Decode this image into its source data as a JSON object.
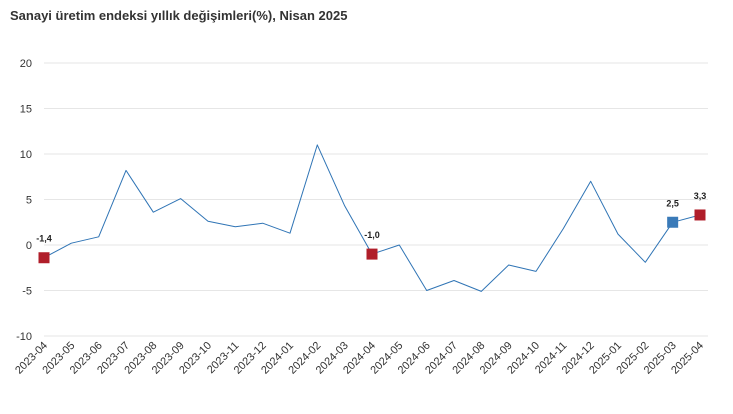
{
  "chart_data": {
    "type": "line",
    "title": "Sanayi üretim endeksi yıllık değişimleri(%), Nisan 2025",
    "xlabel": "",
    "ylabel": "",
    "ylim": [
      -10,
      20
    ],
    "yticks": [
      20,
      15,
      10,
      5,
      0,
      -5,
      -10
    ],
    "grid": true,
    "legend": "none",
    "categories": [
      "2023-04",
      "2023-05",
      "2023-06",
      "2023-07",
      "2023-08",
      "2023-09",
      "2023-10",
      "2023-11",
      "2023-12",
      "2024-01",
      "2024-02",
      "2024-03",
      "2024-04",
      "2024-05",
      "2024-06",
      "2024-07",
      "2024-08",
      "2024-09",
      "2024-10",
      "2024-11",
      "2024-12",
      "2025-01",
      "2025-02",
      "2025-03",
      "2025-04"
    ],
    "series": [
      {
        "values": [
          -1.4,
          0.2,
          0.9,
          8.2,
          3.6,
          5.1,
          2.6,
          2.0,
          2.4,
          1.3,
          11.0,
          4.3,
          -1.0,
          0.0,
          -5.0,
          -3.9,
          -5.1,
          -2.2,
          -2.9,
          1.8,
          7.0,
          1.2,
          -1.9,
          2.5,
          3.3
        ],
        "color": "#2f74b5"
      }
    ],
    "highlighted_points": [
      {
        "category": "2023-04",
        "value": -1.4,
        "label": "-1,4",
        "color": "#b01e2a"
      },
      {
        "category": "2024-04",
        "value": -1.0,
        "label": "-1,0",
        "color": "#b01e2a"
      },
      {
        "category": "2025-03",
        "value": 2.5,
        "label": "2,5",
        "color": "#3a7ab8"
      },
      {
        "category": "2025-04",
        "value": 3.3,
        "label": "3,3",
        "color": "#b01e2a"
      }
    ]
  }
}
